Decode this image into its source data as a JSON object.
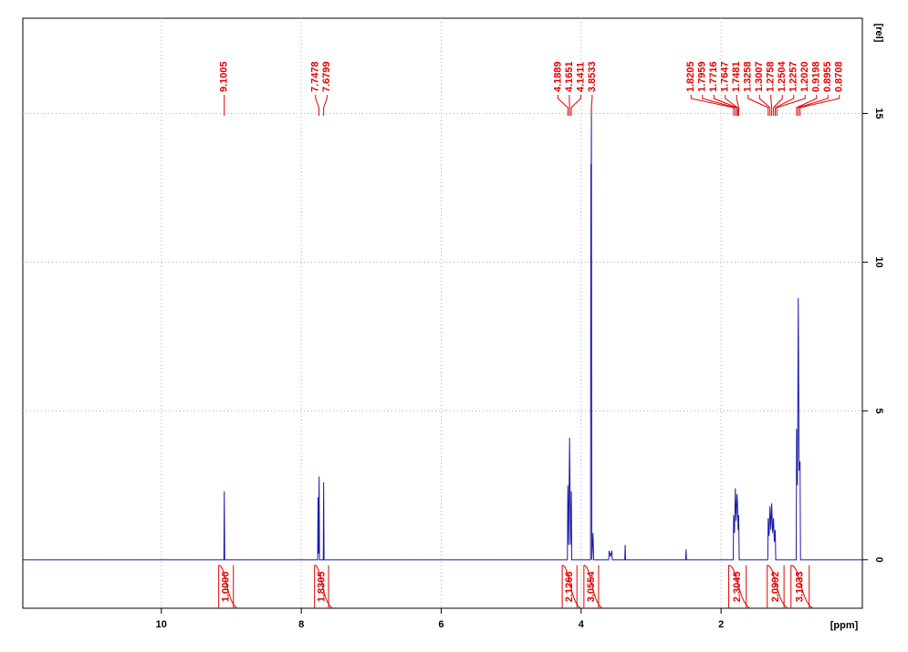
{
  "chart_data": {
    "type": "nmr-spectrum",
    "xlabel": "[ppm]",
    "ylabel": "[rel]",
    "xlim": [
      11.98,
      -0.02
    ],
    "ylim": [
      -1.63,
      18.2
    ],
    "xticks": [
      10,
      8,
      6,
      4,
      2
    ],
    "yticks": [
      0,
      5,
      10,
      15
    ],
    "grid": true,
    "color": "#1a1aa8",
    "annotation_color": "#e00000",
    "x": [
      11.98,
      9.106,
      9.1,
      9.094,
      7.766,
      7.76,
      7.753,
      7.745,
      7.739,
      7.686,
      7.68,
      7.674,
      4.196,
      4.19,
      4.178,
      4.165,
      4.152,
      4.14,
      4.134,
      3.866,
      3.86,
      3.856,
      3.853,
      3.847,
      3.83,
      3.82,
      3.606,
      3.6,
      3.58,
      3.56,
      3.554,
      3.376,
      3.37,
      3.364,
      2.506,
      2.5,
      2.494,
      1.826,
      1.82,
      1.808,
      1.796,
      1.784,
      1.772,
      1.765,
      1.756,
      1.748,
      1.74,
      1.332,
      1.326,
      1.313,
      1.301,
      1.288,
      1.276,
      1.263,
      1.25,
      1.238,
      1.226,
      1.218,
      0.926,
      0.92,
      0.908,
      0.896,
      0.884,
      0.871,
      0.864,
      -0.02
    ],
    "values": [
      0,
      0,
      2.3,
      0,
      0,
      2.1,
      0.2,
      2.8,
      0,
      0,
      2.6,
      0,
      0,
      2.5,
      0.5,
      4.1,
      0.5,
      2.3,
      0,
      0,
      13.3,
      12,
      15.2,
      0,
      0.9,
      0,
      0,
      0.3,
      0.1,
      0.3,
      0,
      0,
      0.5,
      0,
      0,
      0.35,
      0,
      0,
      1.5,
      0.9,
      2.4,
      1.3,
      2.2,
      1.9,
      1.0,
      1.5,
      0,
      0,
      1.4,
      0.8,
      1.8,
      1.0,
      1.9,
      0.9,
      1.4,
      0.6,
      1.0,
      0,
      0,
      4.4,
      2.5,
      8.8,
      3,
      3.3,
      0,
      0
    ],
    "peaks": [
      9.1005,
      7.7478,
      7.6799,
      4.1889,
      4.1651,
      4.1411,
      3.8533,
      1.8205,
      1.7959,
      1.7716,
      1.7647,
      1.7481,
      1.3258,
      1.3007,
      1.2758,
      1.2504,
      1.2257,
      {
        "value": 1.202,
        "label": "1.2020"
      },
      0.9198,
      0.8955,
      0.8708
    ],
    "integrals": [
      {
        "value": 1,
        "label": "1.0000"
      },
      1.8305,
      2.1266,
      3.0554,
      2.3045,
      2.0992,
      3.1033
    ],
    "integral_ranges": [
      [
        9.18,
        8.97
      ],
      [
        7.81,
        7.61
      ],
      [
        4.27,
        4.06
      ],
      [
        3.96,
        3.75
      ],
      [
        1.89,
        1.64
      ],
      [
        1.34,
        1.1
      ],
      [
        1.0,
        0.74
      ]
    ]
  }
}
